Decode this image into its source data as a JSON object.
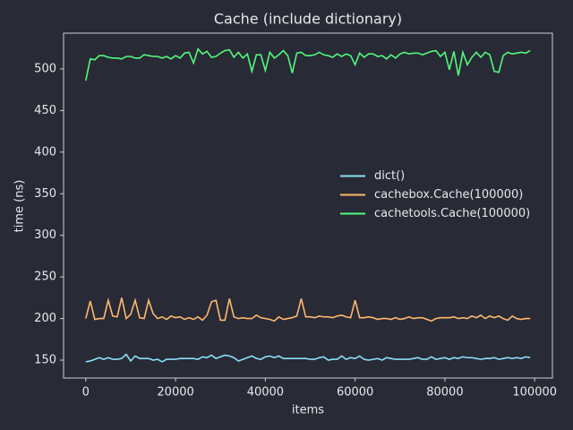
{
  "chart_data": {
    "type": "line",
    "title": "Cache (include dictionary)",
    "xlabel": "items",
    "ylabel": "time (ns)",
    "x": [
      0,
      1000,
      2000,
      3000,
      4000,
      5000,
      6000,
      7000,
      8000,
      9000,
      10000,
      11000,
      12000,
      13000,
      14000,
      15000,
      16000,
      17000,
      18000,
      19000,
      20000,
      21000,
      22000,
      23000,
      24000,
      25000,
      26000,
      27000,
      28000,
      29000,
      30000,
      31000,
      32000,
      33000,
      34000,
      35000,
      36000,
      37000,
      38000,
      39000,
      40000,
      41000,
      42000,
      43000,
      44000,
      45000,
      46000,
      47000,
      48000,
      49000,
      50000,
      51000,
      52000,
      53000,
      54000,
      55000,
      56000,
      57000,
      58000,
      59000,
      60000,
      61000,
      62000,
      63000,
      64000,
      65000,
      66000,
      67000,
      68000,
      69000,
      70000,
      71000,
      72000,
      73000,
      74000,
      75000,
      76000,
      77000,
      78000,
      79000,
      80000,
      81000,
      82000,
      83000,
      84000,
      85000,
      86000,
      87000,
      88000,
      89000,
      90000,
      91000,
      92000,
      93000,
      94000,
      95000,
      96000,
      97000,
      98000,
      99000
    ],
    "series": [
      {
        "name": "dict()",
        "color": "#8be0fa",
        "values": [
          148,
          149,
          151,
          153,
          151,
          153,
          151,
          151,
          152,
          157,
          149,
          155,
          152,
          152,
          152,
          150,
          151,
          148,
          151,
          151,
          151,
          152,
          152,
          152,
          152,
          151,
          154,
          153,
          156,
          152,
          154,
          156,
          155,
          153,
          149,
          151,
          153,
          155,
          152,
          151,
          154,
          155,
          153,
          155,
          152,
          152,
          152,
          152,
          152,
          152,
          151,
          151,
          153,
          154,
          150,
          151,
          151,
          155,
          151,
          153,
          152,
          155,
          151,
          150,
          151,
          152,
          150,
          153,
          152,
          151,
          151,
          151,
          151,
          152,
          153,
          151,
          151,
          154,
          151,
          152,
          153,
          151,
          153,
          152,
          154,
          153,
          153,
          152,
          151,
          152,
          152,
          153,
          151,
          152,
          153,
          152,
          153,
          152,
          154,
          153
        ]
      },
      {
        "name": "cachebox.Cache(100000)",
        "color": "#ffb86c",
        "values": [
          200,
          221,
          199,
          200,
          200,
          222,
          203,
          202,
          225,
          200,
          205,
          222,
          201,
          200,
          222,
          206,
          200,
          202,
          199,
          203,
          201,
          202,
          199,
          201,
          199,
          202,
          198,
          204,
          220,
          222,
          198,
          198,
          224,
          202,
          200,
          201,
          200,
          200,
          204,
          201,
          200,
          199,
          197,
          202,
          199,
          200,
          201,
          203,
          224,
          202,
          202,
          201,
          203,
          202,
          202,
          201,
          203,
          204,
          202,
          201,
          222,
          201,
          201,
          202,
          201,
          199,
          200,
          200,
          199,
          201,
          199,
          200,
          202,
          200,
          201,
          201,
          199,
          197,
          200,
          201,
          201,
          201,
          202,
          200,
          201,
          200,
          203,
          201,
          204,
          200,
          203,
          201,
          203,
          200,
          198,
          203,
          200,
          199,
          200,
          200
        ]
      },
      {
        "name": "cachetools.Cache(100000)",
        "color": "#50fa7b",
        "values": [
          486,
          512,
          511,
          516,
          516,
          514,
          513,
          513,
          512,
          515,
          515,
          513,
          513,
          517,
          516,
          515,
          515,
          513,
          515,
          512,
          516,
          513,
          519,
          520,
          507,
          524,
          518,
          521,
          514,
          515,
          519,
          522,
          523,
          514,
          520,
          513,
          518,
          497,
          517,
          517,
          498,
          520,
          513,
          517,
          522,
          516,
          495,
          519,
          520,
          516,
          516,
          517,
          520,
          517,
          516,
          514,
          518,
          515,
          518,
          516,
          505,
          519,
          514,
          518,
          518,
          515,
          516,
          512,
          517,
          513,
          518,
          520,
          518,
          519,
          519,
          517,
          519,
          521,
          522,
          515,
          520,
          499,
          521,
          492,
          520,
          505,
          514,
          520,
          514,
          520,
          517,
          497,
          496,
          516,
          520,
          518,
          519,
          520,
          519,
          522
        ]
      }
    ],
    "xlim": [
      -4950,
      103950
    ],
    "ylim": [
      128.5,
      543
    ],
    "xticks": [
      0,
      20000,
      40000,
      60000,
      80000,
      100000
    ],
    "yticks": [
      150,
      200,
      250,
      300,
      350,
      400,
      450,
      500
    ],
    "legend": "center right"
  }
}
